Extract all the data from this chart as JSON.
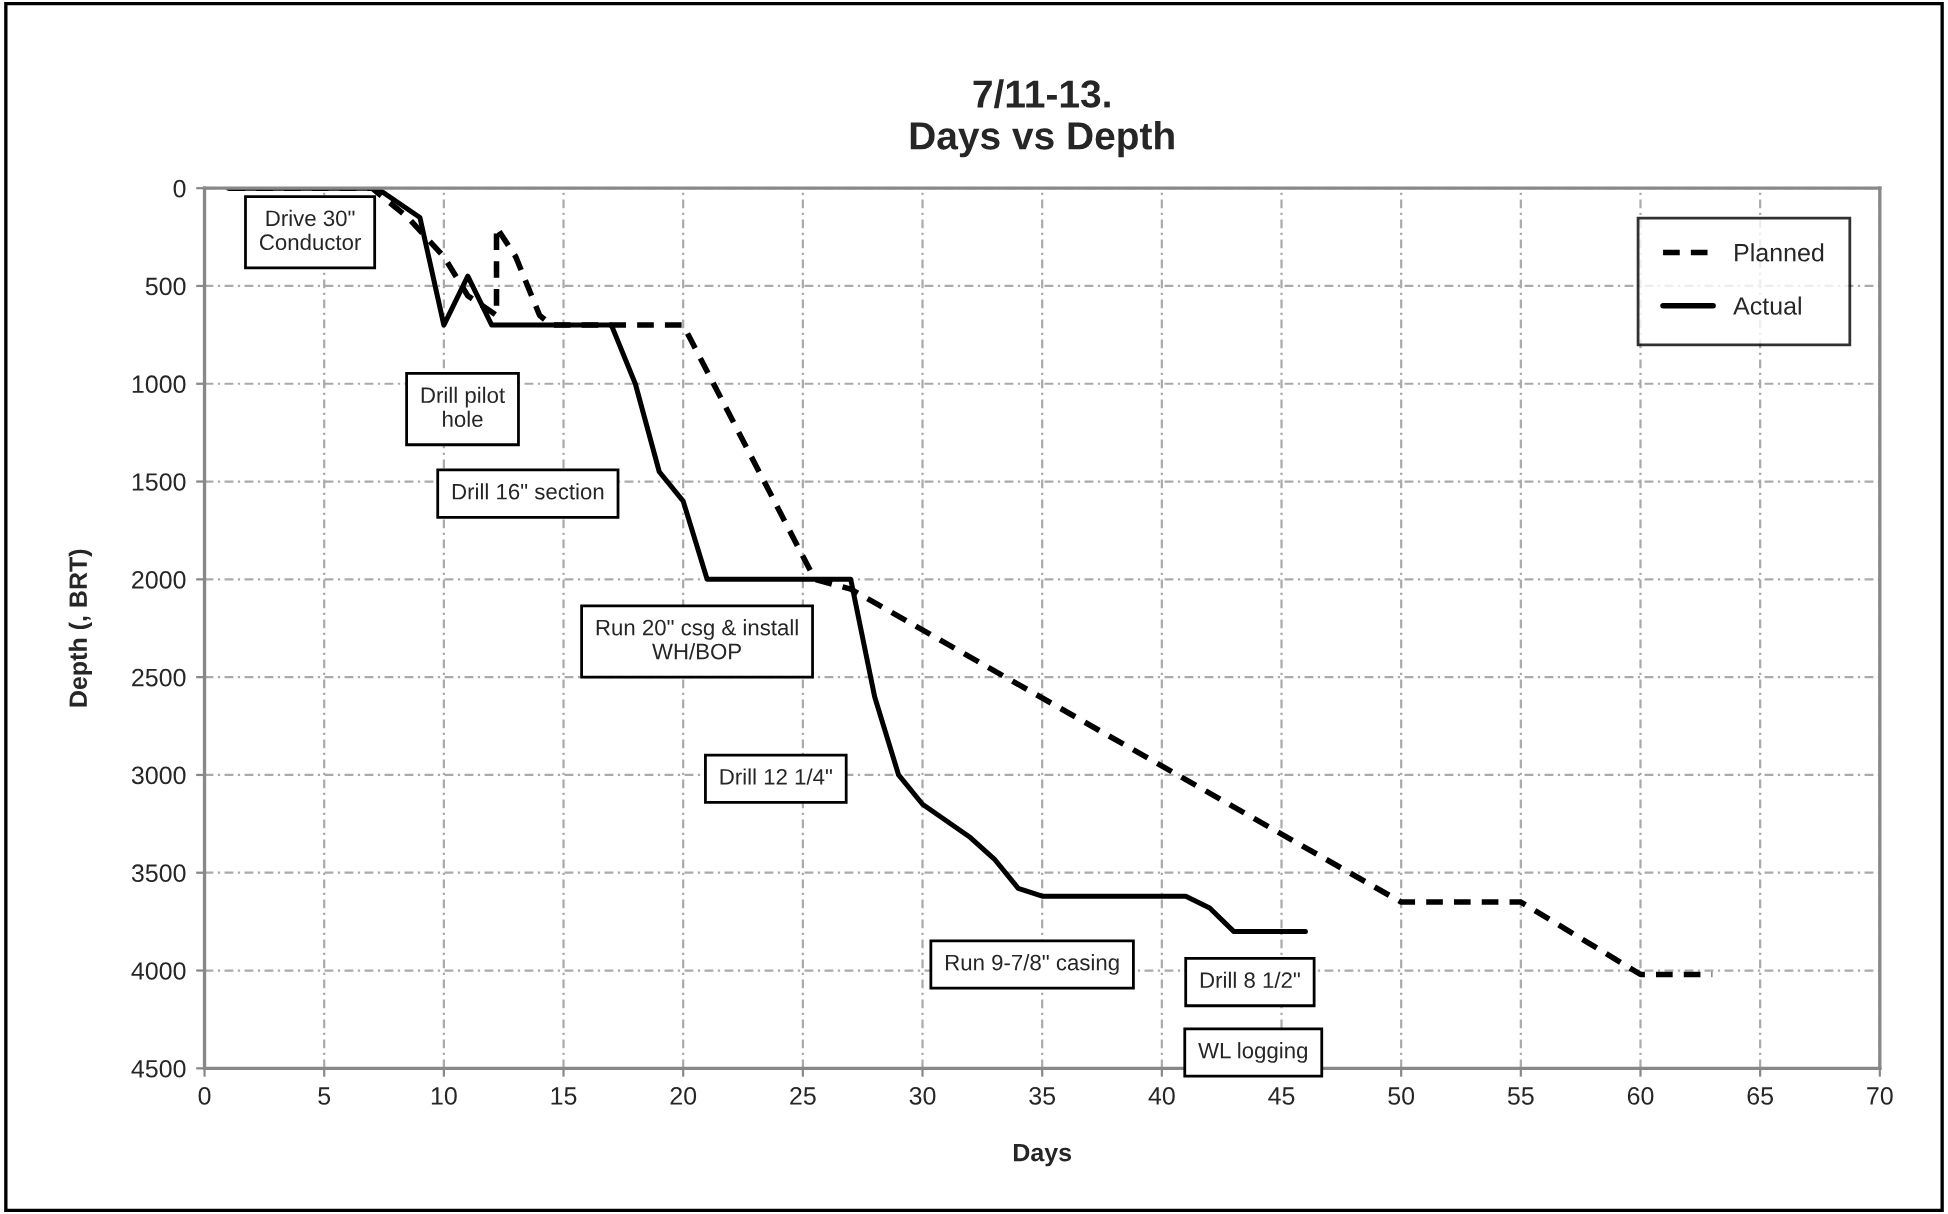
{
  "chart_data": {
    "type": "line",
    "title": "7/11-13.\nDays vs Depth",
    "xlabel": "Days",
    "ylabel": "Depth (, BRT)",
    "xlim": [
      0,
      70
    ],
    "xticks": [
      0,
      5,
      10,
      15,
      20,
      25,
      30,
      35,
      40,
      45,
      50,
      55,
      60,
      65,
      70
    ],
    "ylim": [
      4500,
      0
    ],
    "yticks": [
      0,
      500,
      1000,
      1500,
      2000,
      2500,
      3000,
      3500,
      4000,
      4500
    ],
    "grid": true,
    "legend": "top right",
    "marker": "none",
    "series": [
      {
        "name": "Planned",
        "color": "#000000",
        "line_style": "dashed",
        "x": [
          1,
          7,
          8.5,
          10,
          11,
          12.2,
          12.2,
          13,
          14,
          14.5,
          20,
          25.5,
          27,
          50,
          55,
          60,
          63
        ],
        "values": [
          0,
          0,
          150,
          350,
          550,
          650,
          200,
          350,
          650,
          700,
          700,
          2000,
          2050,
          3650,
          3650,
          4020,
          4020
        ]
      },
      {
        "name": "Actual",
        "color": "#000000",
        "line_style": "solid",
        "x": [
          1,
          7.2,
          9,
          10,
          11,
          12,
          17,
          18,
          19,
          20,
          21,
          27,
          28,
          29,
          30,
          32,
          33,
          34,
          35,
          41,
          42,
          43,
          46
        ],
        "values": [
          0,
          0,
          150,
          700,
          450,
          700,
          700,
          1000,
          1450,
          1600,
          2000,
          2000,
          2600,
          3000,
          3150,
          3320,
          3430,
          3580,
          3620,
          3620,
          3680,
          3800,
          3800
        ]
      }
    ],
    "annotations": [
      "Drive 30\"\nConductor",
      "Drill pilot\nhole",
      "Drill 16\" section",
      "Run 20\" csg & install\nWH/BOP",
      "Drill 12 1/4\"",
      "Run 9-7/8\" casing",
      "Drill 8 1/2\"",
      "WL logging"
    ]
  }
}
